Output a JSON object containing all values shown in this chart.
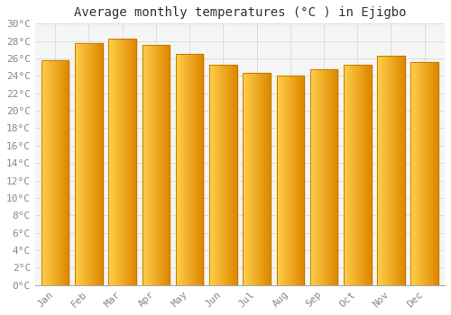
{
  "title": "Average monthly temperatures (°C ) in Ejigbo",
  "months": [
    "Jan",
    "Feb",
    "Mar",
    "Apr",
    "May",
    "Jun",
    "Jul",
    "Aug",
    "Sep",
    "Oct",
    "Nov",
    "Dec"
  ],
  "values": [
    25.8,
    27.8,
    28.3,
    27.5,
    26.5,
    25.3,
    24.3,
    24.0,
    24.8,
    25.3,
    26.3,
    25.6
  ],
  "bar_color_left": "#FFD04C",
  "bar_color_right": "#E08800",
  "bar_edge_color": "#B87800",
  "ylim": [
    0,
    30
  ],
  "ytick_step": 2,
  "background_color": "#FFFFFF",
  "plot_bg_color": "#F5F5F5",
  "grid_color": "#DDDDDD",
  "title_fontsize": 10,
  "tick_fontsize": 8,
  "tick_color": "#888888",
  "font_family": "monospace"
}
